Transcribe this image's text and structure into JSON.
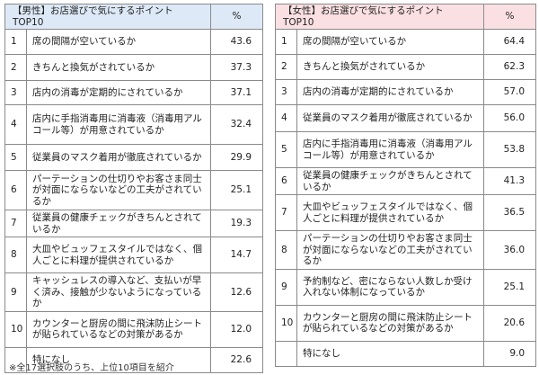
{
  "male": {
    "title": "【男性】お店選びで気にするポイント　TOP10",
    "pct_header": "%",
    "rows": [
      {
        "rank": "1",
        "label": "席の間隔が空いているか",
        "value": "43.6"
      },
      {
        "rank": "2",
        "label": "きちんと換気がされているか",
        "value": "37.3"
      },
      {
        "rank": "3",
        "label": "店内の消毒が定期的にされているか",
        "value": "37.1"
      },
      {
        "rank": "4",
        "label": "店内に手指消毒用に消毒液（消毒用アルコール等）が用意されているか",
        "value": "32.4"
      },
      {
        "rank": "5",
        "label": "従業員のマスク着用が徹底されているか",
        "value": "29.9"
      },
      {
        "rank": "6",
        "label": "パーテーションの仕切りやお客さま同士が対面にならないなどの工夫がされているか",
        "value": "25.1"
      },
      {
        "rank": "7",
        "label": "従業員の健康チェックがきちんとされているか",
        "value": "19.3"
      },
      {
        "rank": "8",
        "label": "大皿やビュッフェスタイルではなく、個人ごとに料理が提供されているか",
        "value": "14.7"
      },
      {
        "rank": "9",
        "label": "キャッシュレスの導入など、支払いが早く済み、接触が少ないようになっているか",
        "value": "12.6"
      },
      {
        "rank": "10",
        "label": "カウンターと厨房の間に飛沫防止シートが貼られているなどの対策があるか",
        "value": "12.0"
      },
      {
        "rank": "",
        "label": "特になし",
        "value": "22.6"
      }
    ]
  },
  "female": {
    "title": "【女性】お店選びで気にするポイント　TOP10",
    "pct_header": "%",
    "rows": [
      {
        "rank": "1",
        "label": "席の間隔が空いているか",
        "value": "64.4"
      },
      {
        "rank": "2",
        "label": "きちんと換気がされているか",
        "value": "62.3"
      },
      {
        "rank": "3",
        "label": "店内の消毒が定期的にされているか",
        "value": "57.0"
      },
      {
        "rank": "4",
        "label": "従業員のマスク着用が徹底されているか",
        "value": "56.0"
      },
      {
        "rank": "5",
        "label": "店内に手指消毒用に消毒液（消毒用アルコール等）が用意されているか",
        "value": "53.8"
      },
      {
        "rank": "6",
        "label": "従業員の健康チェックがきちんとされているか",
        "value": "41.3"
      },
      {
        "rank": "7",
        "label": "大皿やビュッフェスタイルではなく、個人ごとに料理が提供されているか",
        "value": "36.5"
      },
      {
        "rank": "8",
        "label": "パーテーションの仕切りやお客さま同士が対面にならないなどの工夫がされているか",
        "value": "36.0"
      },
      {
        "rank": "9",
        "label": "予約制など、密にならない人数しか受け入れない体制になっているか",
        "value": "25.1"
      },
      {
        "rank": "10",
        "label": "カウンターと厨房の間に飛沫防止シートが貼られているなどの対策があるか",
        "value": "20.6"
      },
      {
        "rank": "",
        "label": "特になし",
        "value": "9.0"
      }
    ]
  },
  "footnote": "※全17選択肢のうち、上位10項目を紹介"
}
